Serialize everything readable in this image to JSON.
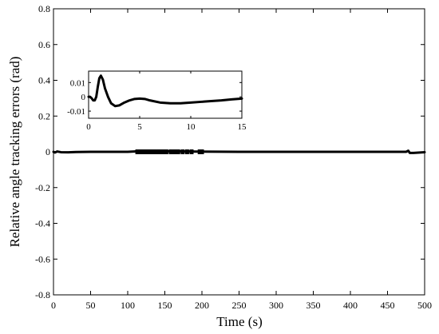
{
  "chart_data": [
    {
      "type": "line",
      "title": "",
      "xlabel": "Time (s)",
      "ylabel": "Relative angle tracking errors (rad)",
      "xlim": [
        0,
        500
      ],
      "ylim": [
        -0.8,
        0.8
      ],
      "xticks": [
        "0",
        "50",
        "100",
        "150",
        "200",
        "250",
        "300",
        "350",
        "400",
        "450",
        "500"
      ],
      "yticks": [
        "-0.8",
        "-0.6",
        "-0.4",
        "-0.2",
        "0",
        "0.2",
        "0.4",
        "0.6",
        "0.8"
      ],
      "grid": false,
      "series": [
        {
          "x": [
            0,
            2,
            5,
            10,
            20,
            30,
            50,
            100,
            113,
            150,
            200,
            250,
            300,
            350,
            400,
            450,
            475,
            478,
            480,
            485,
            500
          ],
          "y": [
            0.0,
            -0.004,
            0.002,
            -0.002,
            -0.003,
            -0.001,
            0.0,
            0.0,
            0.003,
            0.003,
            0.001,
            0.0,
            0.0,
            0.0,
            0.0,
            0.0,
            0.0,
            0.006,
            -0.006,
            -0.006,
            -0.002
          ]
        }
      ],
      "markers": {
        "x": [
          113,
          116,
          120,
          124,
          128,
          132,
          137,
          142,
          147,
          152,
          158,
          163,
          168,
          174,
          180,
          186,
          197,
          200
        ],
        "y": [
          0,
          0,
          0,
          0,
          0,
          0,
          0,
          0,
          0,
          0,
          0,
          0,
          0,
          0,
          0,
          0,
          0,
          0
        ]
      }
    },
    {
      "type": "line",
      "title": "",
      "xlim": [
        0,
        15
      ],
      "ylim": [
        -0.015,
        0.018
      ],
      "xticks": [
        "0",
        "5",
        "10",
        "15"
      ],
      "yticks": [
        "0.01",
        "0",
        "-0.01"
      ],
      "grid": false,
      "series": [
        {
          "x": [
            0,
            0.15,
            0.3,
            0.45,
            0.6,
            0.75,
            0.9,
            1.05,
            1.2,
            1.4,
            1.6,
            1.9,
            2.2,
            2.6,
            3.0,
            3.5,
            4.0,
            4.5,
            5.0,
            5.5,
            6.0,
            7.0,
            8.0,
            9.0,
            10.0,
            11.0,
            12.0,
            13.0,
            14.0,
            15.0
          ],
          "y": [
            0.0,
            0.0,
            -0.001,
            -0.0025,
            -0.0025,
            0.0,
            0.007,
            0.013,
            0.0148,
            0.012,
            0.006,
            0.0,
            -0.0045,
            -0.0065,
            -0.006,
            -0.004,
            -0.0025,
            -0.0015,
            -0.0012,
            -0.0015,
            -0.0025,
            -0.004,
            -0.0045,
            -0.0045,
            -0.004,
            -0.0035,
            -0.003,
            -0.0025,
            -0.0018,
            -0.0012
          ]
        }
      ]
    }
  ]
}
